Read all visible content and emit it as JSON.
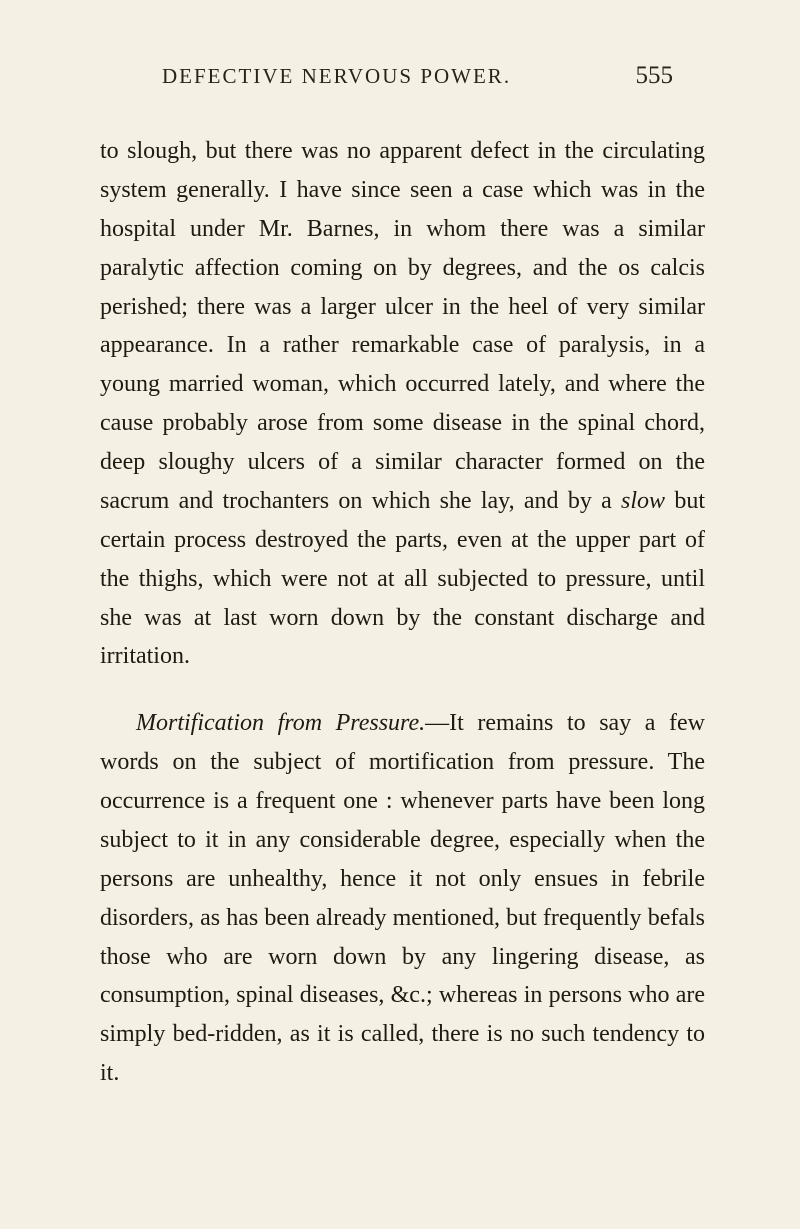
{
  "header": {
    "runningHead": "DEFECTIVE NERVOUS POWER.",
    "pageNumber": "555"
  },
  "paragraphs": {
    "p1": {
      "text": "to slough, but there was no apparent defect in the circulating system generally. I have since seen a case which was in the hospital under Mr. Barnes, in whom there was a similar paralytic affection coming on by degrees, and the os calcis perished; there was a larger ulcer in the heel of very similar appearance. In a rather remarkable case of paralysis, in a young married woman, which occurred lately, and where the cause probably arose from some disease in the spinal chord, deep sloughy ulcers of a similar character formed on the sacrum and trochanters on which she lay, and by a ",
      "italic": "slow",
      "textAfter": " but certain process destroyed the parts, even at the upper part of the thighs, which were not at all subjected to pressure, until she was at last worn down by the constant discharge and irritation."
    },
    "p2": {
      "italic": "Mortification from Pressure.",
      "text": "—It remains to say a few words on the subject of mortification from pressure. The occurrence is a frequent one : whenever parts have been long subject to it in any considerable degree, especially when the persons are unhealthy, hence it not only ensues in febrile disorders, as has been already mentioned, but frequently befals those who are worn down by any lingering disease, as consumption, spinal diseases, &c.; whereas in persons who are simply bed-ridden, as it is called, there is no such tendency to it."
    }
  },
  "styling": {
    "backgroundColor": "#f5f0e4",
    "textColor": "#1f1a12",
    "headerColor": "#2a2418",
    "bodyFontSize": 24,
    "headerFontSize": 21,
    "pageNumFontSize": 25,
    "lineHeight": 1.62,
    "fontFamily": "Georgia, Times New Roman, serif"
  }
}
